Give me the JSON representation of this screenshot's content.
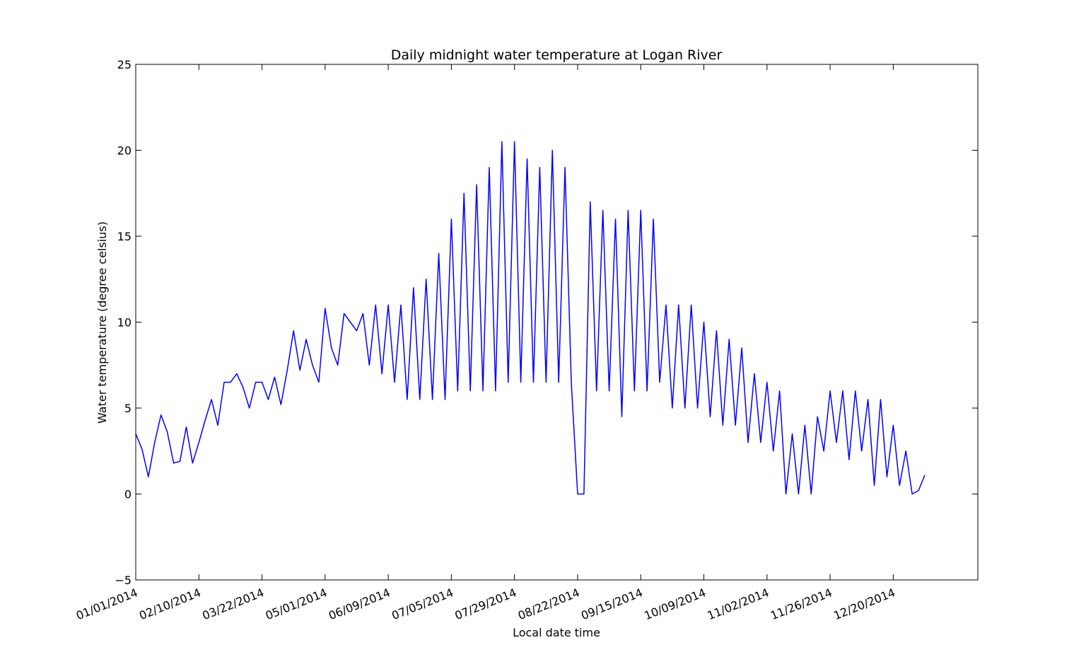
{
  "chart_data": {
    "type": "line",
    "title": "Daily midnight water temperature at Logan River",
    "xlabel": "Local date time",
    "ylabel": "Water temperature (degree celsius)",
    "color": "#0000ff",
    "xlim": [
      0,
      13340
    ],
    "xticks": [
      {
        "value": 0,
        "label": "01/01/2014"
      },
      {
        "value": 1000,
        "label": "02/10/2014"
      },
      {
        "value": 2000,
        "label": "03/22/2014"
      },
      {
        "value": 3000,
        "label": "05/01/2014"
      },
      {
        "value": 4000,
        "label": "06/09/2014"
      },
      {
        "value": 5000,
        "label": "07/05/2014"
      },
      {
        "value": 6000,
        "label": "07/29/2014"
      },
      {
        "value": 7000,
        "label": "08/22/2014"
      },
      {
        "value": 8000,
        "label": "09/15/2014"
      },
      {
        "value": 9000,
        "label": "10/09/2014"
      },
      {
        "value": 10000,
        "label": "11/02/2014"
      },
      {
        "value": 11000,
        "label": "11/26/2014"
      },
      {
        "value": 12000,
        "label": "12/20/2014"
      }
    ],
    "ylim": [
      -5,
      25
    ],
    "yticks": [
      {
        "value": -5,
        "label": "−5"
      },
      0,
      5,
      10,
      15,
      20,
      25
    ],
    "x": [
      0,
      100,
      200,
      300,
      400,
      500,
      600,
      700,
      800,
      900,
      1000,
      1100,
      1200,
      1300,
      1400,
      1500,
      1600,
      1700,
      1800,
      1900,
      2000,
      2100,
      2200,
      2300,
      2400,
      2500,
      2600,
      2700,
      2800,
      2900,
      3000,
      3100,
      3200,
      3300,
      3400,
      3500,
      3600,
      3700,
      3800,
      3900,
      4000,
      4100,
      4200,
      4300,
      4400,
      4500,
      4600,
      4700,
      4800,
      4900,
      5000,
      5100,
      5200,
      5300,
      5400,
      5500,
      5600,
      5700,
      5800,
      5900,
      6000,
      6100,
      6200,
      6300,
      6400,
      6500,
      6600,
      6700,
      6800,
      6900,
      7000,
      7100,
      7200,
      7300,
      7400,
      7500,
      7600,
      7700,
      7800,
      7900,
      8000,
      8100,
      8200,
      8300,
      8400,
      8500,
      8600,
      8700,
      8800,
      8900,
      9000,
      9100,
      9200,
      9300,
      9400,
      9500,
      9600,
      9700,
      9800,
      9900,
      10000,
      10100,
      10200,
      10300,
      10400,
      10500,
      10600,
      10700,
      10800,
      10900,
      11000,
      11100,
      11200,
      11300,
      11400,
      11500,
      11600,
      11700,
      11800,
      11900,
      12000,
      12100,
      12200,
      12300,
      12400,
      12500
    ],
    "values": [
      3.5,
      2.6,
      1.0,
      3.0,
      4.6,
      3.6,
      1.8,
      1.9,
      3.9,
      1.8,
      3.0,
      4.3,
      5.5,
      4.0,
      6.5,
      6.5,
      7.0,
      6.2,
      5.0,
      6.5,
      6.5,
      5.5,
      6.8,
      5.2,
      7.2,
      9.5,
      7.2,
      9.0,
      7.5,
      6.5,
      10.8,
      8.5,
      7.5,
      10.5,
      10.0,
      9.5,
      10.5,
      7.5,
      11.0,
      7.0,
      11.0,
      6.5,
      11.0,
      5.5,
      12.0,
      5.5,
      12.5,
      5.5,
      14.0,
      5.5,
      16.0,
      6.0,
      17.5,
      6.0,
      18.0,
      6.0,
      19.0,
      6.0,
      20.5,
      6.5,
      20.5,
      6.5,
      19.5,
      6.5,
      19.0,
      6.5,
      20.0,
      6.5,
      19.0,
      6.5,
      0,
      0,
      17.0,
      6.0,
      16.5,
      6.0,
      16.0,
      4.5,
      16.5,
      6.0,
      16.5,
      6.0,
      16.0,
      6.5,
      11.0,
      5.0,
      11.0,
      5.0,
      11.0,
      5.0,
      10.0,
      4.5,
      9.5,
      4.0,
      9.0,
      4.0,
      8.5,
      3.0,
      7.0,
      3.0,
      6.5,
      2.5,
      6.0,
      0,
      3.5,
      0,
      4.0,
      0,
      4.5,
      2.5,
      6.0,
      3.0,
      6.0,
      2.0,
      6.0,
      2.5,
      5.5,
      0.5,
      5.5,
      1.0,
      4.0,
      0.5,
      2.5,
      0,
      0.2,
      1.1
    ]
  }
}
